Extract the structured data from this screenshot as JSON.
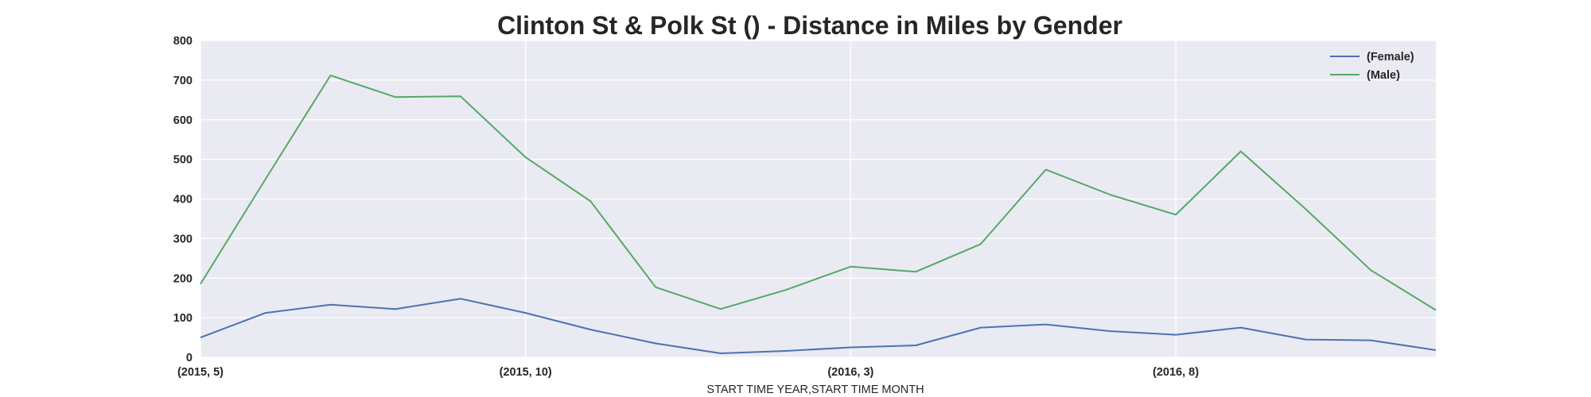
{
  "chart_data": {
    "type": "line",
    "title": "Clinton St & Polk St () - Distance in Miles by Gender",
    "xlabel": "START TIME YEAR,START TIME MONTH",
    "ylabel": "",
    "x": [
      "(2015, 5)",
      "(2015, 6)",
      "(2015, 7)",
      "(2015, 8)",
      "(2015, 9)",
      "(2015, 10)",
      "(2015, 11)",
      "(2015, 12)",
      "(2016, 1)",
      "(2016, 2)",
      "(2016, 3)",
      "(2016, 4)",
      "(2016, 5)",
      "(2016, 6)",
      "(2016, 7)",
      "(2016, 8)",
      "(2016, 9)",
      "(2016, 10)",
      "(2016, 11)",
      "(2016, 12)"
    ],
    "x_tick_labels": [
      "(2015, 5)",
      "(2015, 10)",
      "(2016, 3)",
      "(2016, 8)"
    ],
    "y_ticks": [
      0,
      100,
      200,
      300,
      400,
      500,
      600,
      700,
      800
    ],
    "ylim": [
      0,
      800
    ],
    "grid": true,
    "legend_position": "top-right",
    "series": [
      {
        "name": "(Female)",
        "color": "#4c72b0",
        "values": [
          50,
          112,
          133,
          122,
          148,
          112,
          70,
          35,
          10,
          16,
          25,
          30,
          75,
          83,
          66,
          57,
          75,
          45,
          43,
          18
        ]
      },
      {
        "name": "(Male)",
        "color": "#55a868",
        "values": [
          185,
          450,
          712,
          657,
          659,
          505,
          394,
          177,
          122,
          170,
          229,
          216,
          286,
          474,
          410,
          360,
          520,
          374,
          220,
          119
        ]
      }
    ],
    "colors": {
      "plot_background": "#eaeaf2",
      "grid": "#ffffff"
    }
  }
}
